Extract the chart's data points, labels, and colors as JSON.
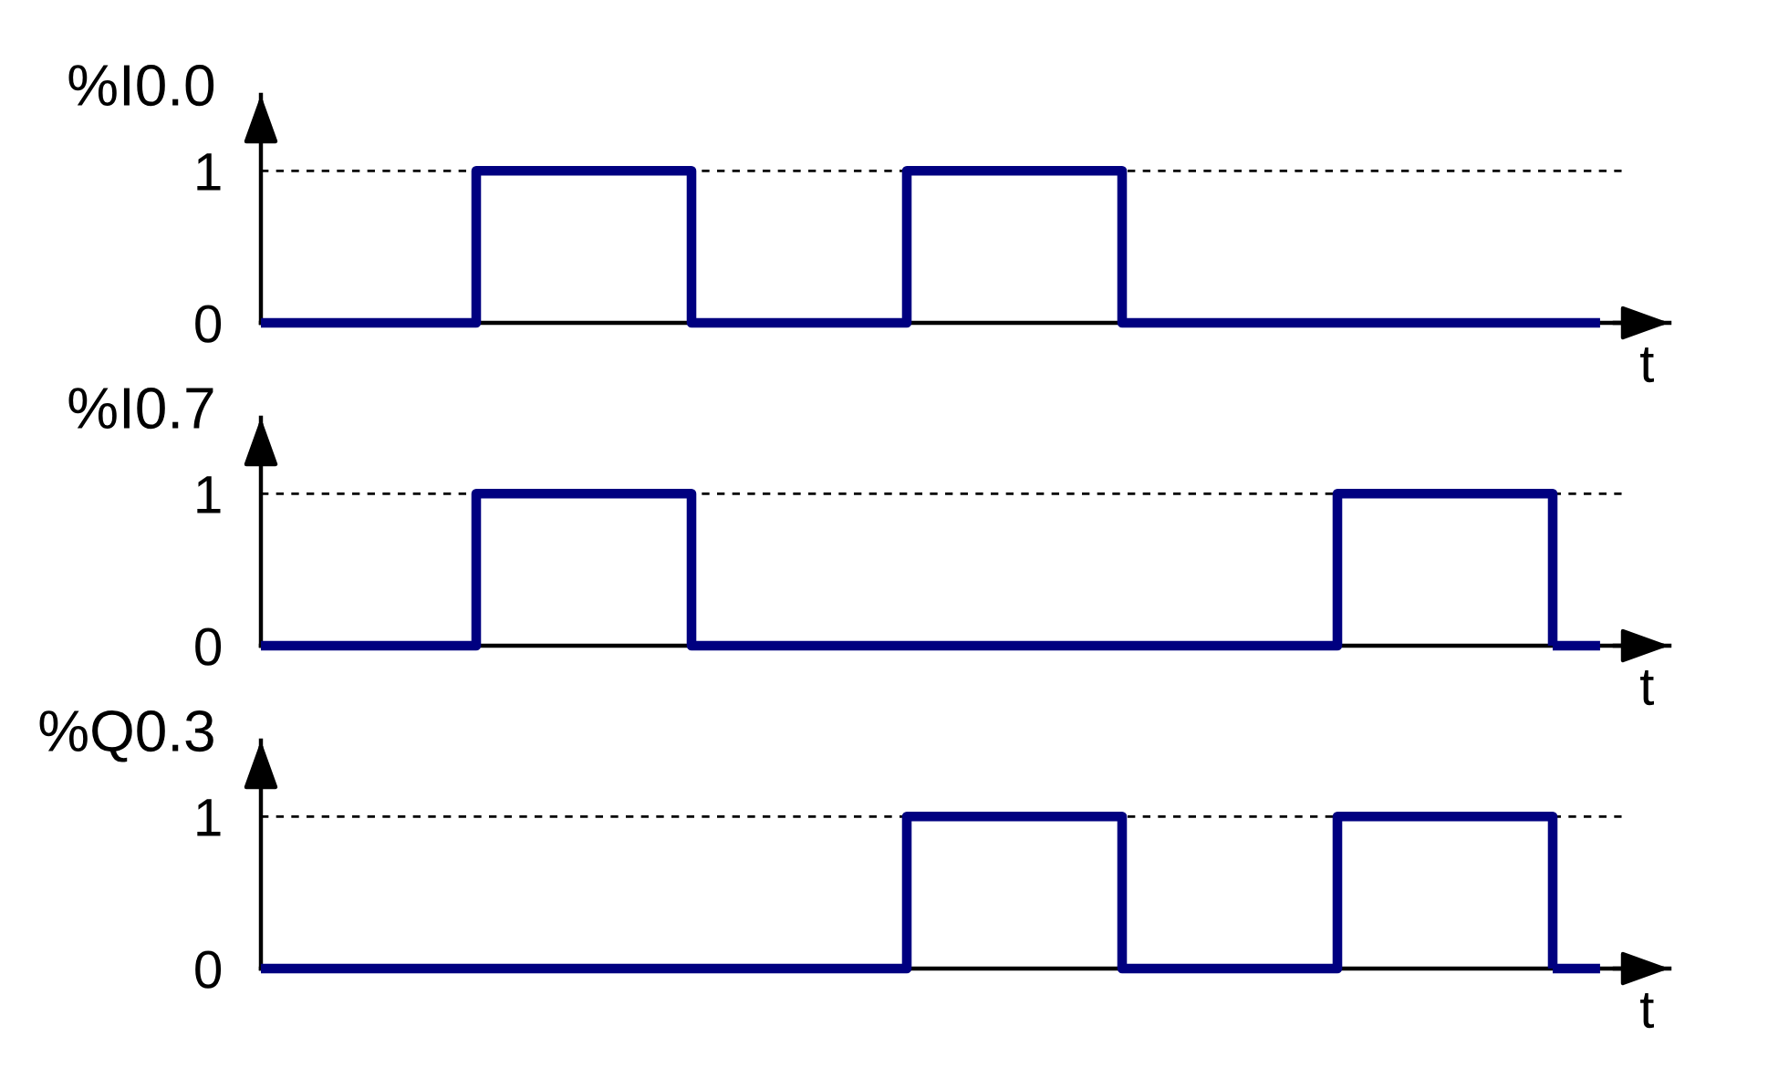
{
  "chart_data": [
    {
      "type": "step",
      "ylabel": "%I0.0",
      "xlabel": "t",
      "categories": [
        null,
        null,
        null,
        null,
        null,
        null,
        null
      ],
      "series": [
        {
          "color": "#000080",
          "values": [
            0,
            1,
            0,
            1,
            0,
            0,
            0
          ]
        }
      ],
      "ylim": [
        0,
        1.5
      ],
      "yticks": [
        0,
        1
      ],
      "ref_lines": [
        {
          "axis": "y",
          "value": 1,
          "color": "#000000",
          "line_style": "dashed"
        }
      ],
      "line_style": "solid",
      "tick_labels": "y"
    },
    {
      "type": "step",
      "ylabel": "%I0.7",
      "xlabel": "t",
      "categories": [
        null,
        null,
        null,
        null,
        null,
        null,
        null
      ],
      "series": [
        {
          "color": "#000080",
          "values": [
            0,
            1,
            0,
            0,
            0,
            1,
            0
          ]
        }
      ],
      "ylim": [
        0,
        1.5
      ],
      "yticks": [
        0,
        1
      ],
      "ref_lines": [
        {
          "axis": "y",
          "value": 1,
          "color": "#000000",
          "line_style": "dashed"
        }
      ],
      "line_style": "solid",
      "tick_labels": "y"
    },
    {
      "type": "step",
      "ylabel": "%Q0.3",
      "xlabel": "t",
      "categories": [
        null,
        null,
        null,
        null,
        null,
        null,
        null
      ],
      "series": [
        {
          "color": "#000080",
          "values": [
            0,
            0,
            0,
            1,
            0,
            1,
            0
          ]
        }
      ],
      "ylim": [
        0,
        1.5
      ],
      "yticks": [
        0,
        1
      ],
      "ref_lines": [
        {
          "axis": "y",
          "value": 1,
          "color": "#000000",
          "line_style": "dashed"
        }
      ],
      "line_style": "solid",
      "tick_labels": "y"
    }
  ]
}
